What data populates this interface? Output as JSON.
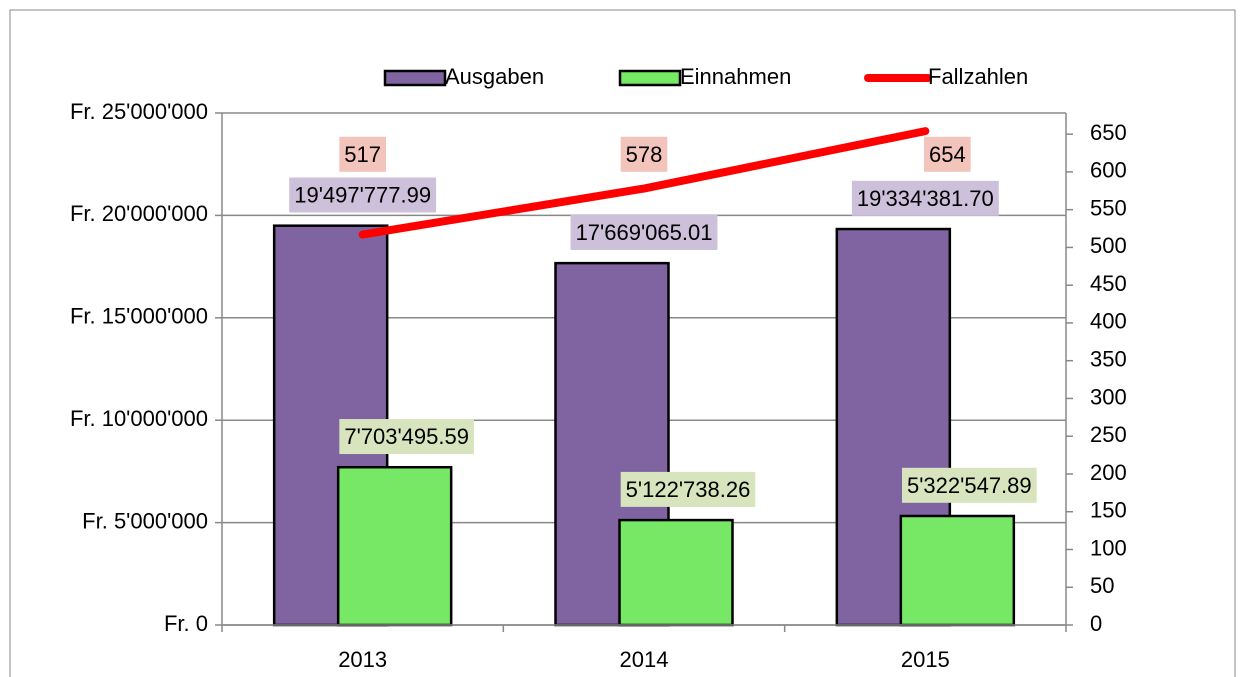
{
  "chart_data": {
    "type": "bar",
    "categories": [
      "2013",
      "2014",
      "2015"
    ],
    "series": [
      {
        "name": "Ausgaben",
        "color": "#8064a2",
        "values": [
          19497777.99,
          17669065.01,
          19334381.7
        ],
        "value_labels": [
          "19'497'777.99",
          "17'669'065.01",
          "19'334'381.70"
        ]
      },
      {
        "name": "Einnahmen",
        "color": "#77e866",
        "values": [
          7703495.59,
          5122738.26,
          5322547.89
        ],
        "value_labels": [
          "7'703'495.59",
          "5'122'738.26",
          "5'322'547.89"
        ]
      },
      {
        "name": "Fallzahlen",
        "color": "#ff0000",
        "type": "line",
        "axis": "y2",
        "values": [
          517,
          578,
          654
        ]
      }
    ],
    "ylim": [
      0,
      25000000
    ],
    "yticks": [
      {
        "value": 0,
        "label": "Fr. 0"
      },
      {
        "value": 5000000,
        "label": "Fr. 5'000'000"
      },
      {
        "value": 10000000,
        "label": "Fr. 10'000'000"
      },
      {
        "value": 15000000,
        "label": "Fr. 15'000'000"
      },
      {
        "value": 20000000,
        "label": "Fr. 20'000'000"
      },
      {
        "value": 25000000,
        "label": "Fr. 25'000'000"
      }
    ],
    "y2lim": [
      0,
      678
    ],
    "y2ticks": [
      0,
      50,
      100,
      150,
      200,
      250,
      300,
      350,
      400,
      450,
      500,
      550,
      600,
      650
    ],
    "grid": true,
    "legend": "top"
  }
}
